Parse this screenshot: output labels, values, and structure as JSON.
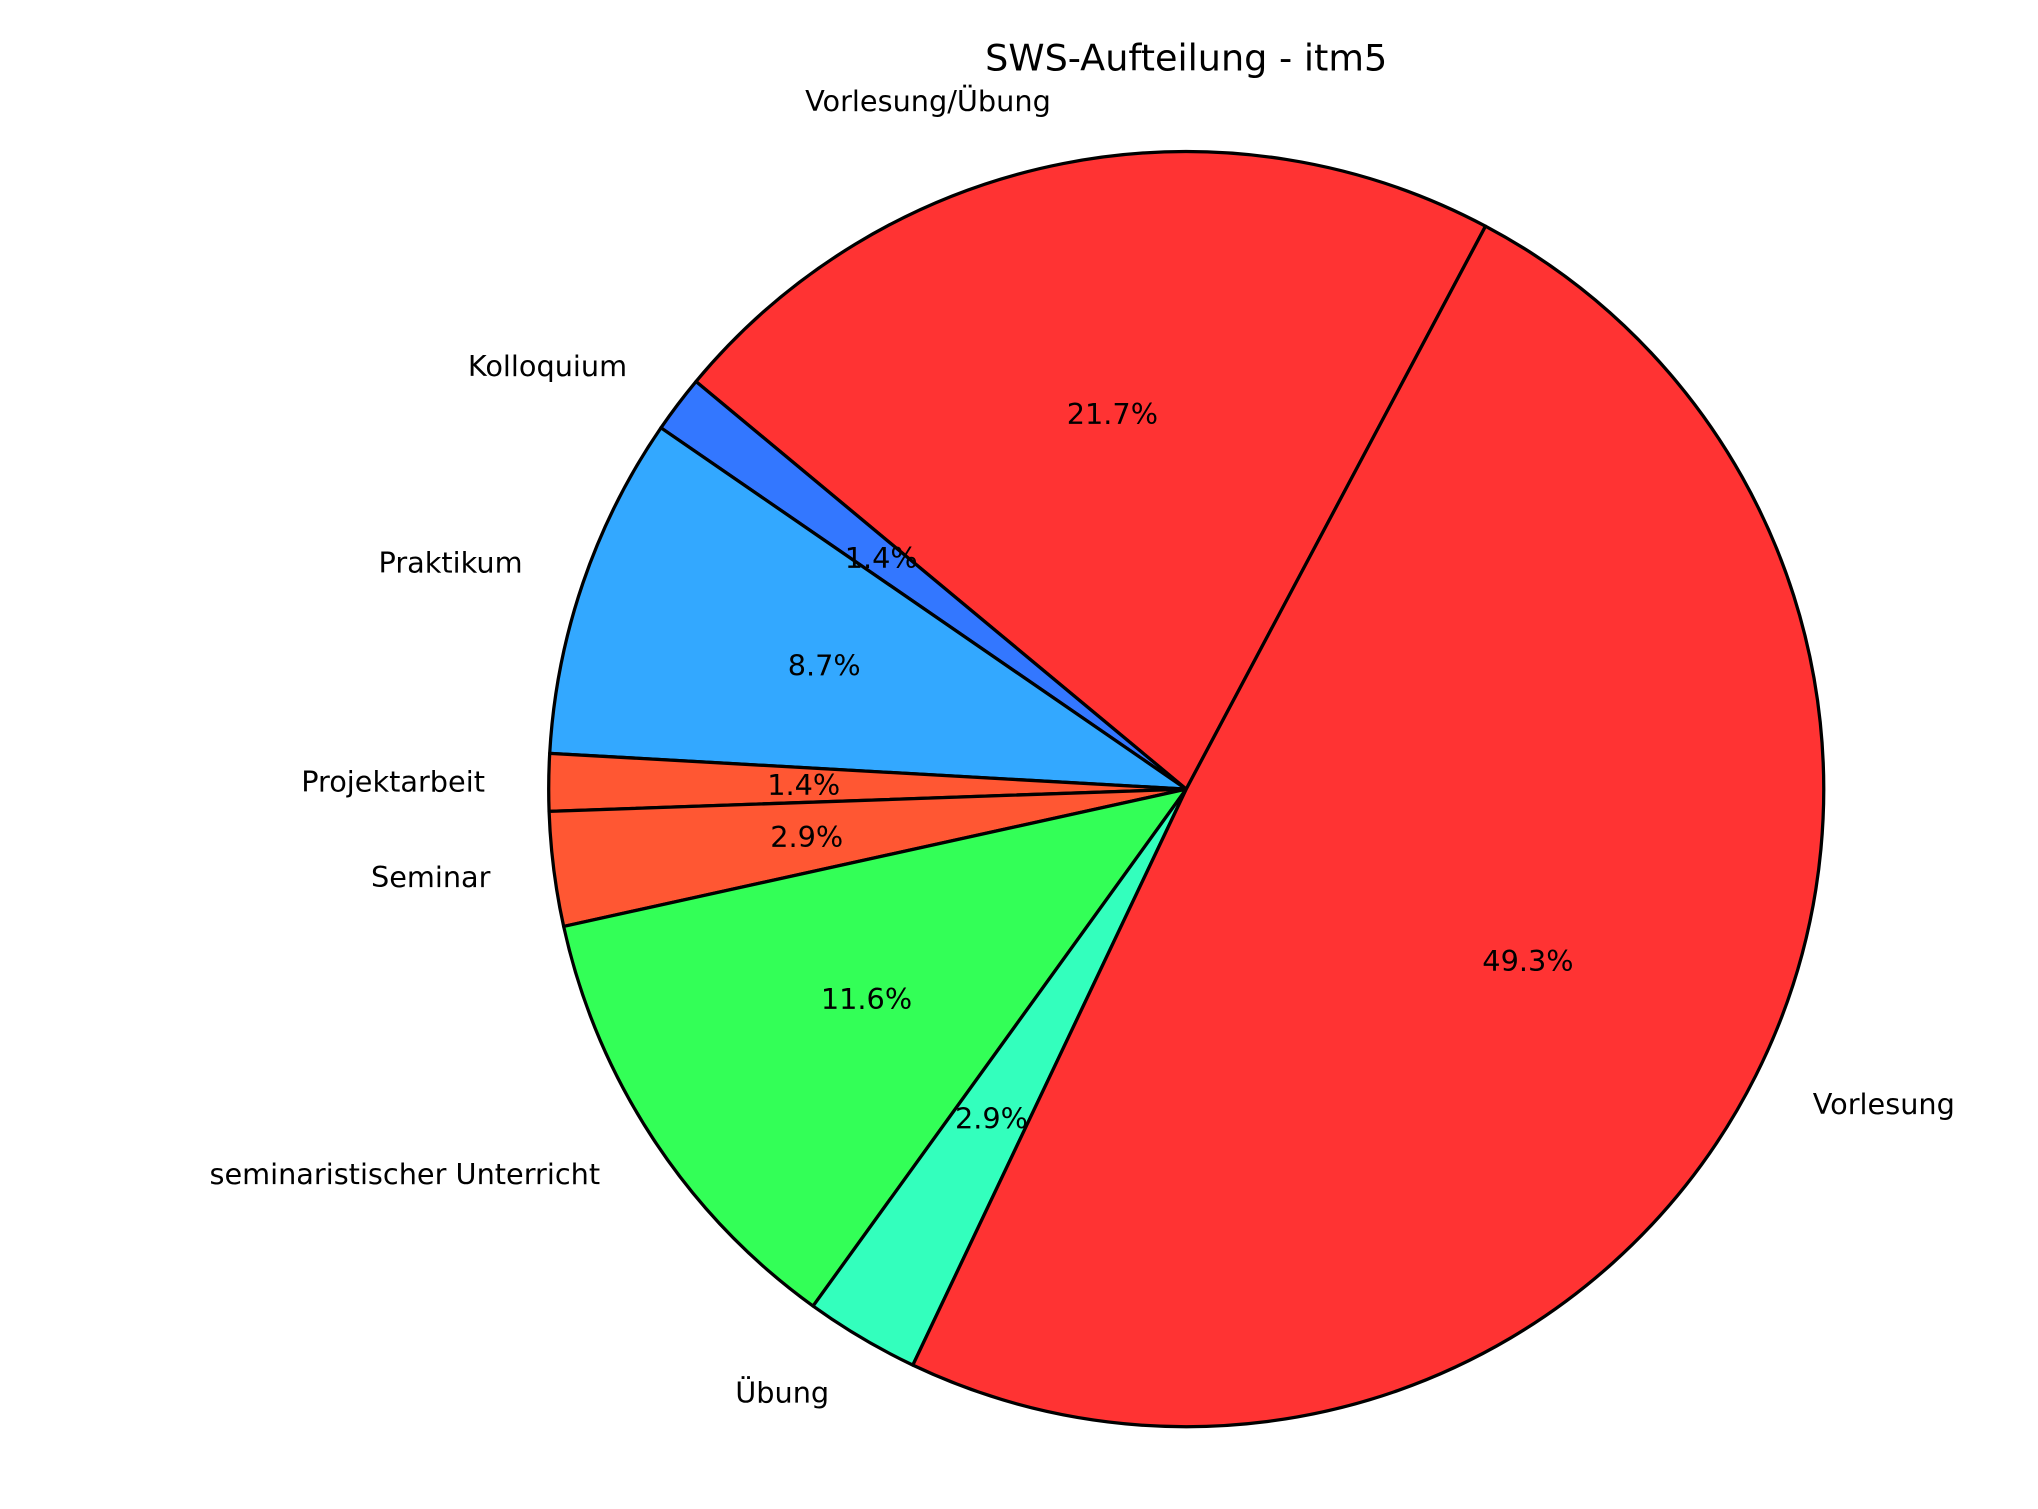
{
  "chart_data": {
    "type": "pie",
    "title": "SWS-Aufteilung - itm5",
    "start_angle_deg": 62,
    "direction": "counterclockwise",
    "slices": [
      {
        "label": "Vorlesung/Übung",
        "value": 15,
        "pct_label": "21.7%",
        "color": "#FF3333"
      },
      {
        "label": "Kolloquium",
        "value": 1,
        "pct_label": "1.4%",
        "color": "#3377FF"
      },
      {
        "label": "Praktikum",
        "value": 6,
        "pct_label": "8.7%",
        "color": "#33A8FF"
      },
      {
        "label": "Projektarbeit",
        "value": 1,
        "pct_label": "1.4%",
        "color": "#FF5733"
      },
      {
        "label": "Seminar",
        "value": 2,
        "pct_label": "2.9%",
        "color": "#FF5733"
      },
      {
        "label": "seminaristischer Unterricht",
        "value": 8,
        "pct_label": "11.6%",
        "color": "#33FF57"
      },
      {
        "label": "Übung",
        "value": 2,
        "pct_label": "2.9%",
        "color": "#33FFBD"
      },
      {
        "label": "Vorlesung",
        "value": 34,
        "pct_label": "49.3%",
        "color": "#FF3333"
      }
    ],
    "edge_color": "#000000"
  }
}
